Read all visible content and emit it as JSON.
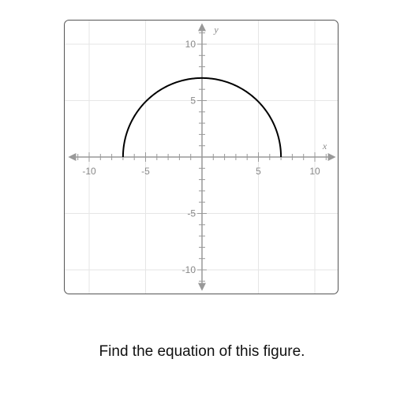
{
  "chart_data": {
    "type": "line",
    "title": "",
    "xlabel": "x",
    "ylabel": "y",
    "xlim": [
      -12,
      12
    ],
    "ylim": [
      -12,
      12
    ],
    "grid": true,
    "x_tick_labels": [
      -10,
      -5,
      5,
      10
    ],
    "y_tick_labels": [
      10,
      5,
      -5,
      -10
    ],
    "series": [
      {
        "shape": "upper semicircle",
        "center": [
          0,
          0
        ],
        "radius": 7,
        "x": [
          -7,
          0,
          7
        ],
        "y": [
          0,
          7,
          0
        ]
      }
    ],
    "colors": {
      "curve": "#000000",
      "axis": "#999999",
      "grid": "#e6e6e6",
      "border": "#555555"
    }
  },
  "prompt": {
    "text": "Find the equation of this figure."
  }
}
